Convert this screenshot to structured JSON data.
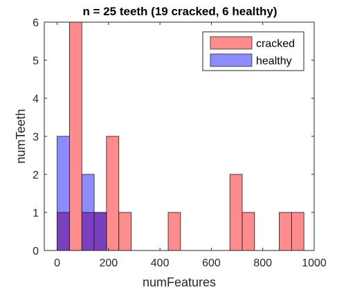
{
  "chart_data": {
    "type": "bar",
    "title": "n = 25 teeth (19 cracked, 6 healthy)",
    "xlabel": "numFeatures",
    "ylabel": "numTeeth",
    "xlim": [
      -50,
      1000
    ],
    "ylim": [
      0,
      6
    ],
    "xticks": [
      0,
      200,
      400,
      600,
      800,
      1000
    ],
    "yticks": [
      0,
      1,
      2,
      3,
      4,
      5,
      6
    ],
    "bin_width": 48,
    "legend_position": "top-right",
    "grid": false,
    "series": [
      {
        "name": "cracked",
        "color": "#ff6666",
        "bins": [
          {
            "start": 48,
            "end": 96,
            "count": 6
          },
          {
            "start": 192,
            "end": 240,
            "count": 3
          },
          {
            "start": 240,
            "end": 288,
            "count": 1
          },
          {
            "start": 432,
            "end": 480,
            "count": 1
          },
          {
            "start": 672,
            "end": 720,
            "count": 2
          },
          {
            "start": 720,
            "end": 768,
            "count": 1
          },
          {
            "start": 864,
            "end": 912,
            "count": 1
          },
          {
            "start": 912,
            "end": 960,
            "count": 1
          }
        ]
      },
      {
        "name": "healthy",
        "color": "#6666ff",
        "bins": [
          {
            "start": 0,
            "end": 48,
            "count": 3
          },
          {
            "start": 96,
            "end": 144,
            "count": 2
          },
          {
            "start": 144,
            "end": 192,
            "count": 1
          }
        ]
      }
    ],
    "overlap_bins": [
      {
        "start": 0,
        "end": 48,
        "count": 1
      },
      {
        "start": 96,
        "end": 144,
        "count": 1
      },
      {
        "start": 144,
        "end": 192,
        "count": 1
      }
    ]
  }
}
